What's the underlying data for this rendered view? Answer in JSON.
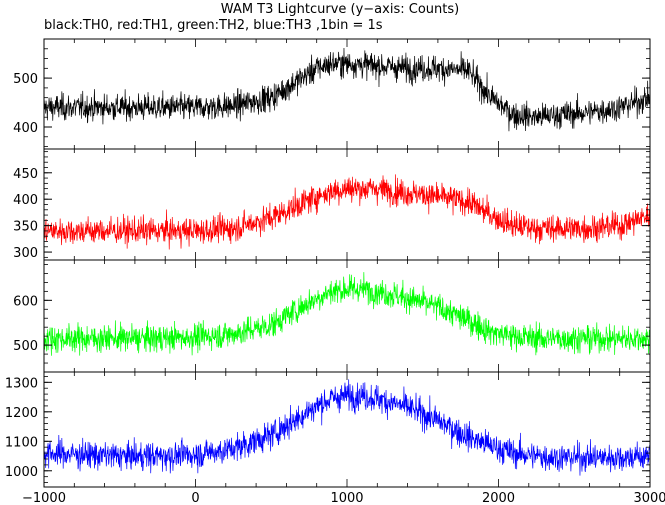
{
  "chart_data": {
    "type": "line",
    "title": "WAM T3 Lightcurve (y−axis: Counts)",
    "subtitle": "black:TH0, red:TH1, green:TH2, blue:TH3 ,1bin = 1s",
    "xlabel": "",
    "xlim": [
      -1000,
      3000
    ],
    "x_ticks": [
      "−1000",
      "0",
      "1000",
      "2000",
      "3000"
    ],
    "x_tick_values": [
      -1000,
      0,
      1000,
      2000,
      3000
    ],
    "grid": false,
    "panels": [
      {
        "name": "TH0",
        "color": "#000000",
        "ylim": [
          355,
          580
        ],
        "y_ticks": [
          400,
          500
        ],
        "x": [
          -1000,
          -750,
          -500,
          -250,
          0,
          250,
          500,
          650,
          800,
          900,
          1000,
          1100,
          1200,
          1400,
          1600,
          1800,
          1950,
          2100,
          2250,
          2400,
          2600,
          2800,
          3000
        ],
        "y": [
          440,
          440,
          440,
          440,
          440,
          443,
          460,
          490,
          520,
          530,
          530,
          528,
          525,
          520,
          520,
          515,
          460,
          425,
          420,
          425,
          430,
          440,
          460
        ]
      },
      {
        "name": "TH1",
        "color": "#ff0000",
        "ylim": [
          285,
          495
        ],
        "y_ticks": [
          300,
          350,
          400,
          450
        ],
        "x": [
          -1000,
          -750,
          -500,
          -250,
          0,
          250,
          500,
          650,
          800,
          900,
          1000,
          1100,
          1200,
          1400,
          1600,
          1800,
          1950,
          2100,
          2250,
          2400,
          2600,
          2800,
          3000
        ],
        "y": [
          340,
          340,
          340,
          340,
          340,
          345,
          365,
          385,
          405,
          415,
          420,
          420,
          420,
          412,
          405,
          395,
          370,
          350,
          345,
          345,
          345,
          350,
          370
        ]
      },
      {
        "name": "TH2",
        "color": "#00ff00",
        "ylim": [
          440,
          690
        ],
        "y_ticks": [
          500,
          600
        ],
        "x": [
          -1000,
          -750,
          -500,
          -250,
          0,
          250,
          500,
          650,
          800,
          900,
          1000,
          1100,
          1200,
          1400,
          1600,
          1800,
          1950,
          2100,
          2250,
          2400,
          2600,
          2800,
          3000
        ],
        "y": [
          515,
          515,
          515,
          515,
          518,
          525,
          545,
          575,
          605,
          620,
          625,
          625,
          620,
          605,
          585,
          555,
          530,
          520,
          515,
          515,
          515,
          515,
          515
        ]
      },
      {
        "name": "TH3",
        "color": "#0000ff",
        "ylim": [
          945,
          1335
        ],
        "y_ticks": [
          1000,
          1100,
          1200,
          1300
        ],
        "x": [
          -1000,
          -750,
          -500,
          -250,
          0,
          250,
          500,
          650,
          800,
          900,
          1000,
          1100,
          1200,
          1400,
          1600,
          1800,
          1950,
          2100,
          2250,
          2400,
          2600,
          2800,
          3000
        ],
        "y": [
          1060,
          1055,
          1050,
          1050,
          1055,
          1075,
          1120,
          1170,
          1220,
          1245,
          1255,
          1255,
          1245,
          1215,
          1170,
          1115,
          1085,
          1060,
          1050,
          1045,
          1045,
          1045,
          1050
        ]
      }
    ]
  }
}
